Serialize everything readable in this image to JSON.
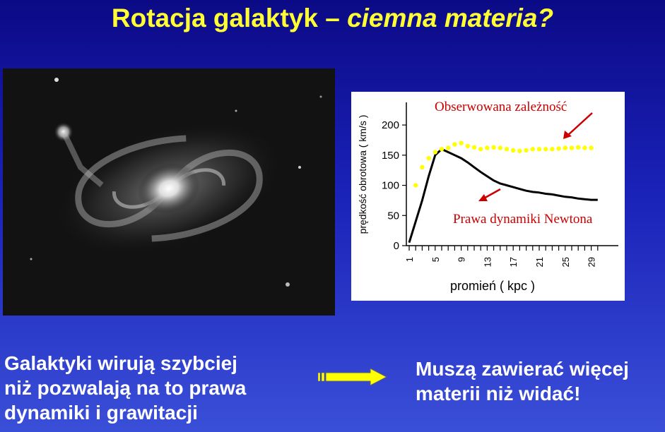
{
  "title": {
    "main": "Rotacja galaktyk – ",
    "italic": "ciemna materia?"
  },
  "colors": {
    "title": "#ffff33",
    "observed": "#ffff00",
    "newton": "#000000",
    "annotation": "#cc0000"
  },
  "chart_data": {
    "type": "line",
    "xlabel": "promień ( kpc )",
    "ylabel": "prędkość obrotowa ( km/s )",
    "x_ticks": [
      "1",
      "5",
      "9",
      "13",
      "17",
      "21",
      "25",
      "29"
    ],
    "y_ticks": [
      "0",
      "50",
      "100",
      "150",
      "200"
    ],
    "xlim": [
      1,
      31
    ],
    "ylim": [
      0,
      220
    ],
    "series": [
      {
        "name": "Obserwowana zależność",
        "style": "dots",
        "x": [
          2,
          3,
          4,
          5,
          6,
          7,
          8,
          9,
          10,
          11,
          12,
          13,
          14,
          15,
          16,
          17,
          18,
          19,
          20,
          21,
          22,
          23,
          24,
          25,
          26,
          27,
          28,
          29
        ],
        "y": [
          100,
          130,
          145,
          155,
          160,
          162,
          168,
          170,
          165,
          163,
          160,
          162,
          163,
          162,
          160,
          158,
          157,
          158,
          160,
          160,
          160,
          160,
          161,
          162,
          162,
          163,
          162,
          162
        ]
      },
      {
        "name": "Prawa dynamiki Newtona",
        "style": "line",
        "x": [
          1,
          2,
          3,
          4,
          5,
          6,
          7,
          8,
          9,
          10,
          11,
          12,
          13,
          14,
          15,
          16,
          17,
          18,
          19,
          20,
          21,
          22,
          23,
          24,
          25,
          26,
          27,
          28,
          29,
          30
        ],
        "y": [
          5,
          40,
          75,
          115,
          150,
          160,
          155,
          150,
          145,
          138,
          130,
          122,
          115,
          108,
          103,
          100,
          97,
          94,
          91,
          89,
          88,
          86,
          85,
          83,
          81,
          80,
          78,
          77,
          76,
          76
        ]
      }
    ],
    "annotations": [
      "Obserwowana zależność",
      "Prawa dynamiki Newtona"
    ]
  },
  "bottom": {
    "left_lines": [
      "Galaktyki wirują szybciej",
      "niż pozwalają na to prawa",
      "dynamiki  i grawitacji"
    ],
    "right_lines": [
      "Muszą zawierać więcej",
      "materii niż widać!"
    ]
  }
}
